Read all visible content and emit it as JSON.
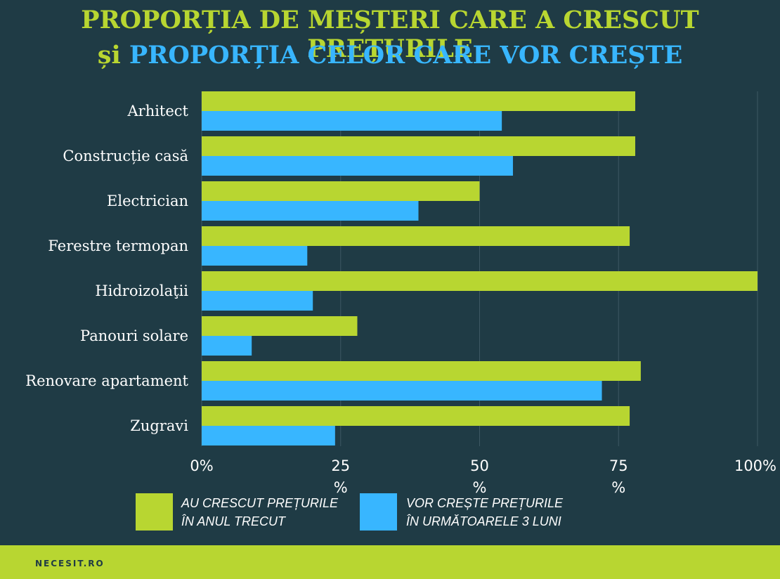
{
  "title": {
    "line1": "PROPORȚIA DE MEȘTERI CARE A CRESCUT PREȚURILE",
    "line2_prefix": "și",
    "line2_rest": " PROPORȚIA CELOR CARE VOR CREȘTE"
  },
  "colors": {
    "background": "#1f3b45",
    "green": "#b8d631",
    "blue": "#38b6ff",
    "grid": "#3d5863",
    "text": "#ffffff"
  },
  "chart_data": {
    "type": "bar",
    "orientation": "horizontal",
    "categories": [
      "Arhitect",
      "Construcție casă",
      "Electrician",
      "Ferestre termopan",
      "Hidroizolaţii",
      "Panouri solare",
      "Renovare apartament",
      "Zugravi"
    ],
    "series": [
      {
        "name": "AU CRESCUT PREȚURILE ÎN ANUL TRECUT",
        "color": "#b8d631",
        "values": [
          78,
          78,
          50,
          77,
          100,
          28,
          79,
          77
        ]
      },
      {
        "name": "VOR CREȘTE PREȚURILE ÎN URMĂTOARELE 3 LUNI",
        "color": "#38b6ff",
        "values": [
          54,
          56,
          39,
          19,
          20,
          9,
          72,
          24
        ]
      }
    ],
    "xlim": [
      0,
      100
    ],
    "ticks": [
      0,
      25,
      50,
      75,
      100
    ],
    "tick_labels": [
      {
        "value": "0%",
        "unit": ""
      },
      {
        "value": "25",
        "unit": "%"
      },
      {
        "value": "50",
        "unit": "%"
      },
      {
        "value": "75",
        "unit": "%"
      },
      {
        "value": "100%",
        "unit": ""
      }
    ],
    "grid": true,
    "legend_position": "bottom"
  },
  "legend": [
    {
      "line1": "AU CRESCUT PREȚURILE",
      "line2": "ÎN ANUL TRECUT"
    },
    {
      "line1": "VOR CREȘTE PREȚURILE",
      "line2": "ÎN URMĂTOARELE 3 LUNI"
    }
  ],
  "footer": {
    "brand": "NECESIT.RO"
  }
}
